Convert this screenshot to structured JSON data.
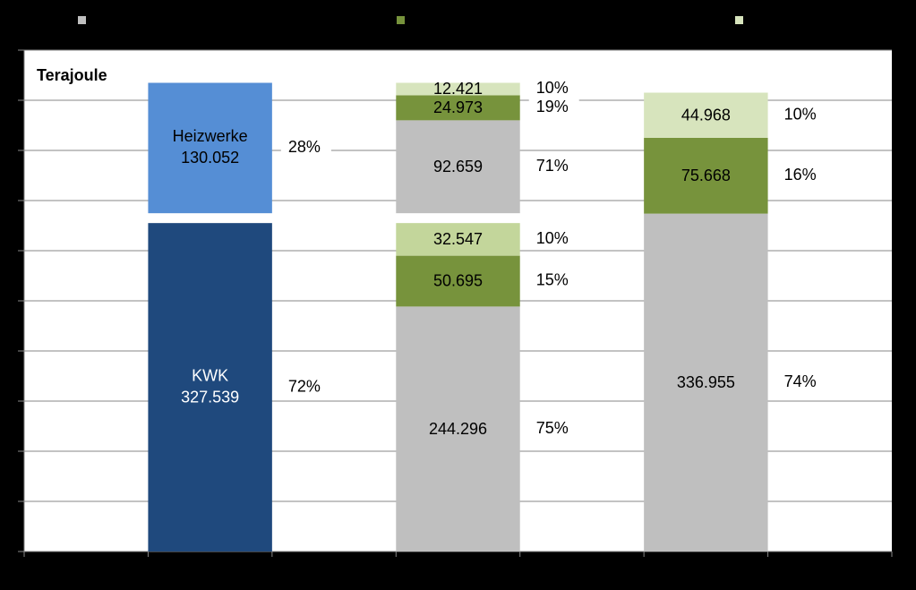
{
  "chart_data": {
    "type": "grouped_stack",
    "title": "Terajoule",
    "categories": [
      null,
      null,
      null
    ],
    "ylim": [
      0,
      500000
    ],
    "yticks": [
      0,
      50000,
      100000,
      150000,
      200000,
      250000,
      300000,
      350000,
      400000,
      450000,
      500000
    ],
    "grid": true,
    "legend": [
      {
        "color": "#bfbfbf"
      },
      {
        "color": "#77933c"
      },
      {
        "color": "#d7e4bd"
      }
    ],
    "bars": [
      {
        "groups": [
          [
            {
              "name": "KWK",
              "value": 327539,
              "value_label": "327.539",
              "share": "72%",
              "color": "#1f497d",
              "text_color": "#ffffff"
            }
          ],
          [
            {
              "name": "Heizwerke",
              "value": 130052,
              "value_label": "130.052",
              "share": "28%",
              "color": "#558ed5",
              "text_color": "#000000"
            }
          ]
        ]
      },
      {
        "groups": [
          [
            {
              "value": 244296,
              "value_label": "244.296",
              "share": "75%",
              "color": "#bfbfbf",
              "text_color": "#000000"
            },
            {
              "value": 50695,
              "value_label": "50.695",
              "share": "15%",
              "color": "#77933c",
              "text_color": "#000000"
            },
            {
              "value": 32547,
              "value_label": "32.547",
              "share": "10%",
              "color": "#c3d69b",
              "text_color": "#000000"
            }
          ],
          [
            {
              "value": 92659,
              "value_label": "92.659",
              "share": "71%",
              "color": "#bfbfbf",
              "text_color": "#000000"
            },
            {
              "value": 24973,
              "value_label": "24.973",
              "share": "19%",
              "color": "#77933c",
              "text_color": "#000000"
            },
            {
              "value": 12421,
              "value_label": "12.421",
              "share": "10%",
              "color": "#d7e4bd",
              "text_color": "#000000"
            }
          ]
        ]
      },
      {
        "groups": [
          [
            {
              "value": 336955,
              "value_label": "336.955",
              "share": "74%",
              "color": "#bfbfbf",
              "text_color": "#000000"
            },
            {
              "value": 75668,
              "value_label": "75.668",
              "share": "16%",
              "color": "#77933c",
              "text_color": "#000000"
            },
            {
              "value": 44968,
              "value_label": "44.968",
              "share": "10%",
              "color": "#d7e4bd",
              "text_color": "#000000"
            }
          ]
        ]
      }
    ]
  }
}
